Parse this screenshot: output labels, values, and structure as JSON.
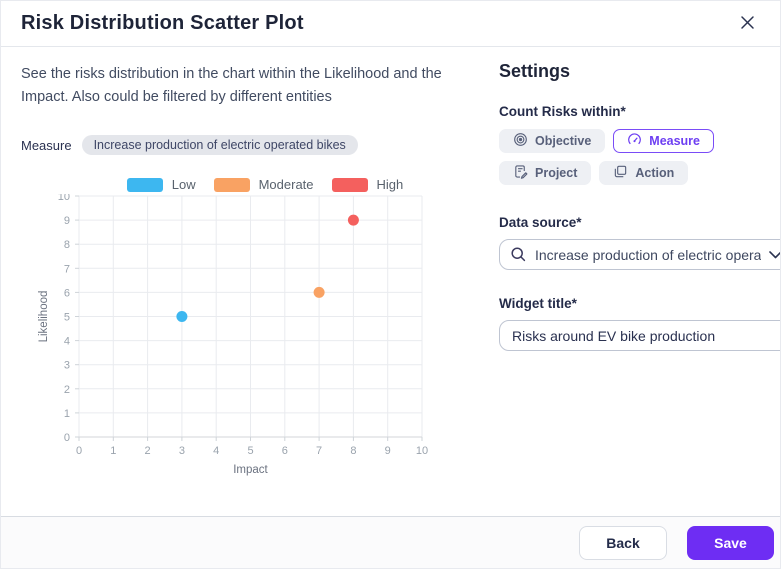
{
  "header": {
    "title": "Risk Distribution Scatter Plot",
    "close_glyph": "✕"
  },
  "main": {
    "description": "See the risks distribution in the chart within the Likelihood and the Impact. Also could be filtered by different entities",
    "filter": {
      "label": "Measure",
      "value": "Increase production of electric operated bikes"
    }
  },
  "chart_data": {
    "type": "scatter",
    "xlabel": "Impact",
    "ylabel": "Likelihood",
    "xlim": [
      0,
      10
    ],
    "ylim": [
      0,
      10
    ],
    "xticks": [
      0,
      1,
      2,
      3,
      4,
      5,
      6,
      7,
      8,
      9,
      10
    ],
    "yticks": [
      0,
      1,
      2,
      3,
      4,
      5,
      6,
      7,
      8,
      9,
      10
    ],
    "grid": true,
    "legend_position": "top",
    "series": [
      {
        "name": "Low",
        "color": "#3db7f0",
        "points": [
          {
            "x": 3,
            "y": 5
          }
        ]
      },
      {
        "name": "Moderate",
        "color": "#f9a263",
        "points": [
          {
            "x": 7,
            "y": 6
          }
        ]
      },
      {
        "name": "High",
        "color": "#f4605e",
        "points": [
          {
            "x": 8,
            "y": 9
          }
        ]
      }
    ]
  },
  "settings": {
    "heading": "Settings",
    "count_risks_label": "Count Risks within*",
    "options": [
      {
        "label": "Objective",
        "icon": "objective-icon",
        "selected": false
      },
      {
        "label": "Measure",
        "icon": "measure-icon",
        "selected": true
      },
      {
        "label": "Project",
        "icon": "project-icon",
        "selected": false
      },
      {
        "label": "Action",
        "icon": "action-icon",
        "selected": false
      }
    ],
    "data_source_label": "Data source*",
    "data_source_value": "Increase production of electric opera...",
    "widget_title_label": "Widget title*",
    "widget_title_value": "Risks around EV bike production"
  },
  "footer": {
    "back_label": "Back",
    "save_label": "Save"
  },
  "colors": {
    "accent": "#6e2df3",
    "selected_chip": "#7a4cf7",
    "badge_bg": "#e4e6eb",
    "low": "#3db7f0",
    "moderate": "#f9a263",
    "high": "#f4605e"
  }
}
